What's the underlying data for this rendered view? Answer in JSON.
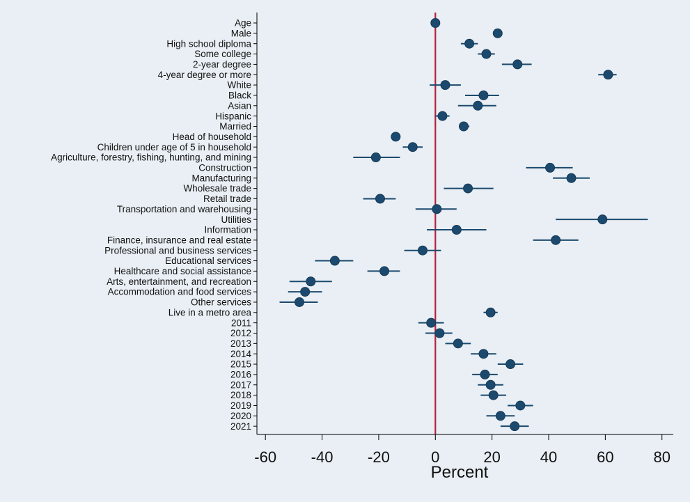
{
  "chart_data": {
    "type": "scatter",
    "subtype": "coefficient-plot-horizontal",
    "title": "",
    "xlabel": "Percent",
    "ylabel": "",
    "xlim": [
      -63,
      84
    ],
    "xticks": [
      -60,
      -40,
      -20,
      0,
      20,
      40,
      60,
      80
    ],
    "xtick_labels": [
      "-60",
      "-40",
      "-20",
      "0",
      "20",
      "40",
      "60",
      "80"
    ],
    "reference_line_x": 0,
    "grid": false,
    "legend": "none",
    "colors": {
      "background": "#e9eff4",
      "point": "#1c4a6e",
      "error_bar": "#1c4a6e",
      "reference_line": "#b0233f",
      "axis": "#000000"
    },
    "points": [
      {
        "label": "Age",
        "estimate": 0,
        "ci": [
          -0.3,
          0.3
        ]
      },
      {
        "label": "Male",
        "estimate": 22,
        "ci": [
          20.5,
          23.5
        ]
      },
      {
        "label": "High school diploma",
        "estimate": 12,
        "ci": [
          9,
          15
        ]
      },
      {
        "label": "Some college",
        "estimate": 18,
        "ci": [
          15,
          21
        ]
      },
      {
        "label": "2-year degree",
        "estimate": 29,
        "ci": [
          23.5,
          34
        ]
      },
      {
        "label": "4-year degree or more",
        "estimate": 61,
        "ci": [
          57.5,
          64
        ]
      },
      {
        "label": "White",
        "estimate": 3.5,
        "ci": [
          -2,
          9
        ]
      },
      {
        "label": "Black",
        "estimate": 17,
        "ci": [
          10.5,
          22.5
        ]
      },
      {
        "label": "Asian",
        "estimate": 15,
        "ci": [
          8,
          21.5
        ]
      },
      {
        "label": "Hispanic",
        "estimate": 2.5,
        "ci": [
          0,
          5
        ]
      },
      {
        "label": "Married",
        "estimate": 10,
        "ci": [
          8.5,
          12
        ]
      },
      {
        "label": "Head of household",
        "estimate": -14,
        "ci": [
          -15.5,
          -12.5
        ]
      },
      {
        "label": "Children under age of 5 in household",
        "estimate": -8,
        "ci": [
          -11.5,
          -4.5
        ]
      },
      {
        "label": "Agriculture, forestry, fishing, hunting, and mining",
        "estimate": -21,
        "ci": [
          -29,
          -12.5
        ]
      },
      {
        "label": "Construction",
        "estimate": 40.5,
        "ci": [
          32,
          48.5
        ]
      },
      {
        "label": "Manufacturing",
        "estimate": 48,
        "ci": [
          41.5,
          54.5
        ]
      },
      {
        "label": "Wholesale trade",
        "estimate": 11.5,
        "ci": [
          3,
          20.5
        ]
      },
      {
        "label": "Retail trade",
        "estimate": -19.5,
        "ci": [
          -25.5,
          -14
        ]
      },
      {
        "label": "Transportation and warehousing",
        "estimate": 0.5,
        "ci": [
          -7,
          7.5
        ]
      },
      {
        "label": "Utilities",
        "estimate": 59,
        "ci": [
          42.5,
          75
        ]
      },
      {
        "label": "Information",
        "estimate": 7.5,
        "ci": [
          -3,
          18
        ]
      },
      {
        "label": "Finance, insurance and real estate",
        "estimate": 42.5,
        "ci": [
          34.5,
          50.5
        ]
      },
      {
        "label": "Professional and business services",
        "estimate": -4.5,
        "ci": [
          -11,
          2
        ]
      },
      {
        "label": "Educational services",
        "estimate": -35.5,
        "ci": [
          -42.5,
          -29
        ]
      },
      {
        "label": "Healthcare and social assistance",
        "estimate": -18,
        "ci": [
          -24,
          -12.5
        ]
      },
      {
        "label": "Arts, entertainment, and recreation",
        "estimate": -44,
        "ci": [
          -51.5,
          -36.5
        ]
      },
      {
        "label": "Accommodation and food services",
        "estimate": -46,
        "ci": [
          -52,
          -40
        ]
      },
      {
        "label": "Other services",
        "estimate": -48,
        "ci": [
          -55,
          -41.5
        ]
      },
      {
        "label": "Live in a metro area",
        "estimate": 19.5,
        "ci": [
          17,
          22
        ]
      },
      {
        "label": "2011",
        "estimate": -1.5,
        "ci": [
          -6,
          3
        ]
      },
      {
        "label": "2012",
        "estimate": 1.5,
        "ci": [
          -3.5,
          6
        ]
      },
      {
        "label": "2013",
        "estimate": 8,
        "ci": [
          3.5,
          12.5
        ]
      },
      {
        "label": "2014",
        "estimate": 17,
        "ci": [
          12.5,
          21.5
        ]
      },
      {
        "label": "2015",
        "estimate": 26.5,
        "ci": [
          22,
          31
        ]
      },
      {
        "label": "2016",
        "estimate": 17.5,
        "ci": [
          13,
          22
        ]
      },
      {
        "label": "2017",
        "estimate": 19.5,
        "ci": [
          15,
          24
        ]
      },
      {
        "label": "2018",
        "estimate": 20.5,
        "ci": [
          16,
          25
        ]
      },
      {
        "label": "2019",
        "estimate": 30,
        "ci": [
          25.5,
          34.5
        ]
      },
      {
        "label": "2020",
        "estimate": 23,
        "ci": [
          18,
          28
        ]
      },
      {
        "label": "2021",
        "estimate": 28,
        "ci": [
          23,
          33
        ]
      }
    ]
  }
}
